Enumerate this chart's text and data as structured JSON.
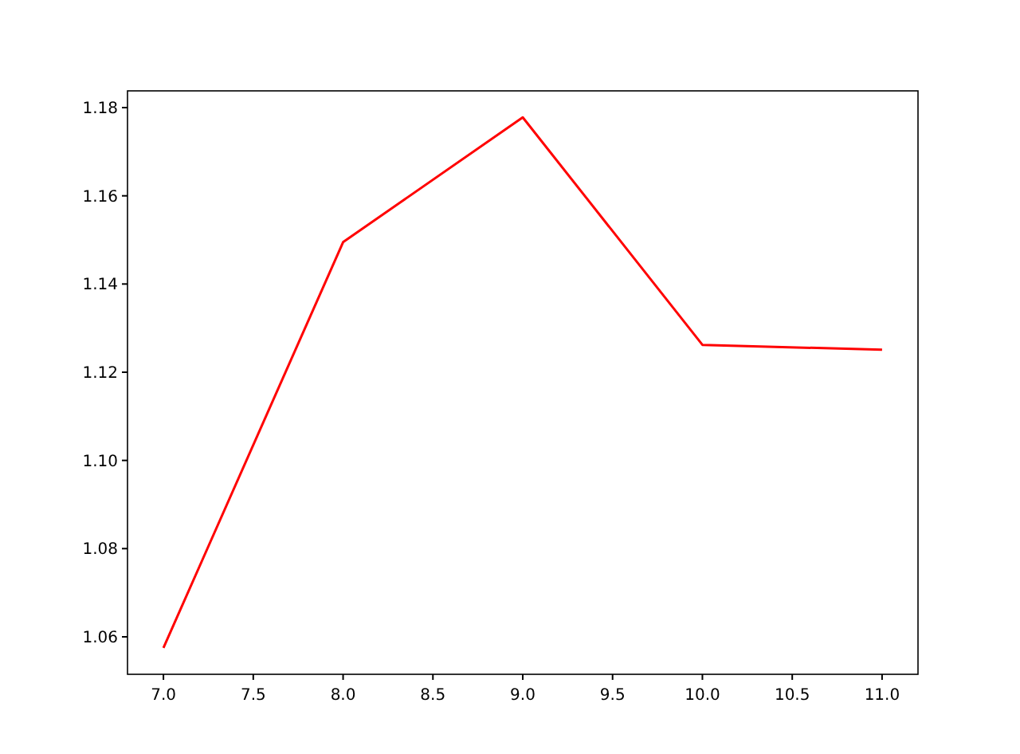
{
  "chart_data": {
    "type": "line",
    "x": [
      7,
      8,
      9,
      10,
      11
    ],
    "series": [
      {
        "color": "#ff0000",
        "values": [
          1.0575,
          1.1495,
          1.1778,
          1.1262,
          1.1251
        ]
      }
    ],
    "xlim": [
      6.8,
      11.2
    ],
    "xticks": [
      {
        "value": 7,
        "label": "7.0"
      },
      {
        "value": 7.5,
        "label": "7.5"
      },
      {
        "value": 8,
        "label": "8.0"
      },
      {
        "value": 8.5,
        "label": "8.5"
      },
      {
        "value": 9,
        "label": "9.0"
      },
      {
        "value": 9.5,
        "label": "9.5"
      },
      {
        "value": 10,
        "label": "10.0"
      },
      {
        "value": 10.5,
        "label": "10.5"
      },
      {
        "value": 11,
        "label": "11.0"
      }
    ],
    "ylim": [
      1.0515,
      1.1838
    ],
    "yticks": [
      {
        "value": 1.06,
        "label": "1.06"
      },
      {
        "value": 1.08,
        "label": "1.08"
      },
      {
        "value": 1.1,
        "label": "1.10"
      },
      {
        "value": 1.12,
        "label": "1.12"
      },
      {
        "value": 1.14,
        "label": "1.14"
      },
      {
        "value": 1.16,
        "label": "1.16"
      },
      {
        "value": 1.18,
        "label": "1.18"
      }
    ],
    "grid": false
  }
}
